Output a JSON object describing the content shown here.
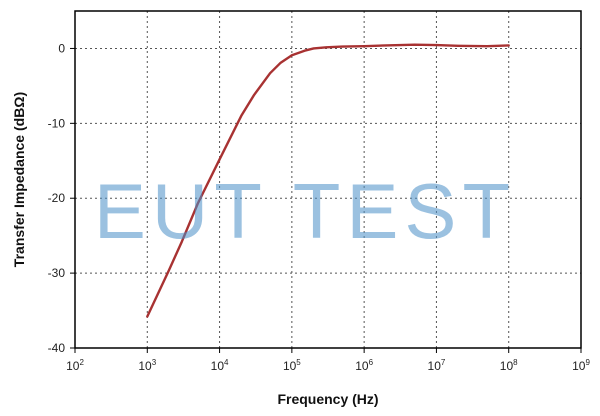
{
  "chart_data": {
    "type": "line",
    "xlabel": "Frequency (Hz)",
    "ylabel": "Transfer Impedance (dBΩ)",
    "x_scale": "log",
    "xlim": [
      100,
      1000000000
    ],
    "ylim": [
      -40,
      5
    ],
    "x_ticks": [
      {
        "base": "10",
        "exp": "2"
      },
      {
        "base": "10",
        "exp": "3"
      },
      {
        "base": "10",
        "exp": "4"
      },
      {
        "base": "10",
        "exp": "5"
      },
      {
        "base": "10",
        "exp": "6"
      },
      {
        "base": "10",
        "exp": "7"
      },
      {
        "base": "10",
        "exp": "8"
      },
      {
        "base": "10",
        "exp": "9"
      }
    ],
    "y_ticks": [
      "0",
      "-10",
      "-20",
      "-30",
      "-40"
    ],
    "grid": true,
    "series": [
      {
        "color": "#a83232",
        "points": [
          [
            1000,
            -35.8
          ],
          [
            2000,
            -29.6
          ],
          [
            3000,
            -25.8
          ],
          [
            5000,
            -20.7
          ],
          [
            10000,
            -14.8
          ],
          [
            20000,
            -9.0
          ],
          [
            30000,
            -6.2
          ],
          [
            50000,
            -3.3
          ],
          [
            70000,
            -1.9
          ],
          [
            100000,
            -0.9
          ],
          [
            150000,
            -0.3
          ],
          [
            200000,
            0.0
          ],
          [
            300000,
            0.15
          ],
          [
            500000,
            0.25
          ],
          [
            1000000,
            0.3
          ],
          [
            2000000,
            0.4
          ],
          [
            5000000,
            0.5
          ],
          [
            10000000,
            0.45
          ],
          [
            20000000,
            0.35
          ],
          [
            50000000,
            0.3
          ],
          [
            100000000,
            0.4
          ]
        ]
      }
    ]
  },
  "watermark": {
    "text": "EUT TEST",
    "color": "#4a90c8"
  }
}
